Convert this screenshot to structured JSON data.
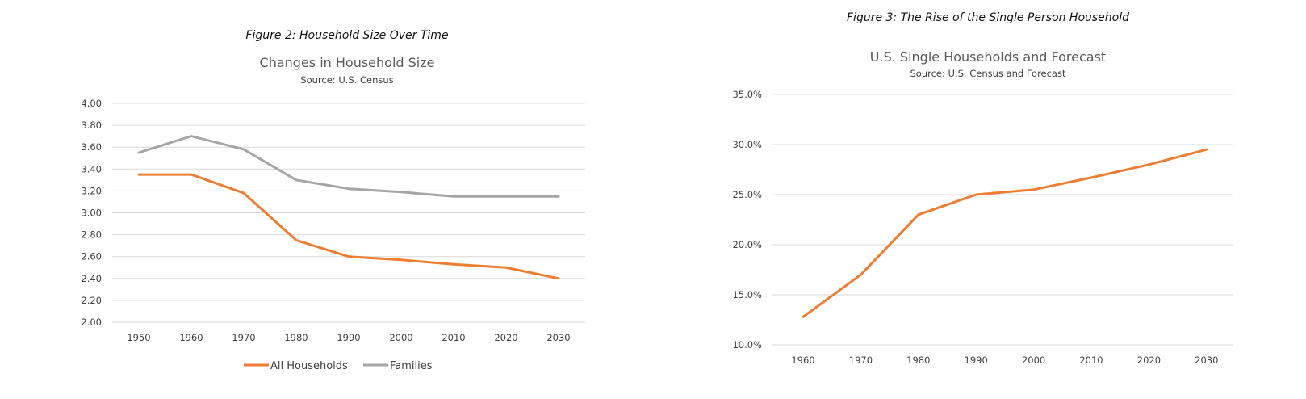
{
  "chart_data": [
    {
      "type": "line",
      "figure_caption": "Figure 2: Household Size Over Time",
      "title": "Changes in Household Size",
      "subtitle": "Source: U.S. Census",
      "x": [
        "1950",
        "1960",
        "1970",
        "1980",
        "1990",
        "2000",
        "2010",
        "2020",
        "2030"
      ],
      "yticks": [
        "2.00",
        "2.20",
        "2.40",
        "2.60",
        "2.80",
        "3.00",
        "3.20",
        "3.40",
        "3.60",
        "3.80",
        "4.00"
      ],
      "ylim": [
        2.0,
        4.0
      ],
      "grid": true,
      "legend_position": "bottom",
      "series": [
        {
          "name": "All Households",
          "color": "#ED7D31",
          "values": [
            3.35,
            3.35,
            3.18,
            2.75,
            2.6,
            2.57,
            2.53,
            2.5,
            2.4
          ]
        },
        {
          "name": "Families",
          "color": "#A5A5A5",
          "values": [
            3.55,
            3.7,
            3.58,
            3.3,
            3.22,
            3.19,
            3.15,
            3.15,
            3.15
          ]
        }
      ]
    },
    {
      "type": "line",
      "figure_caption": "Figure 3: The Rise of the Single Person Household",
      "title": "U.S. Single Households and Forecast",
      "subtitle": "Source: U.S. Census and Forecast",
      "x": [
        "1960",
        "1970",
        "1980",
        "1990",
        "2000",
        "2010",
        "2020",
        "2030"
      ],
      "yticks": [
        "10.0%",
        "15.0%",
        "20.0%",
        "25.0%",
        "30.0%",
        "35.0%"
      ],
      "ylim": [
        10.0,
        35.0
      ],
      "grid": true,
      "legend_position": "none",
      "series": [
        {
          "color": "#ED7D31",
          "values": [
            12.8,
            17.0,
            23.0,
            25.0,
            25.5,
            26.7,
            28.0,
            29.5
          ]
        }
      ]
    }
  ]
}
